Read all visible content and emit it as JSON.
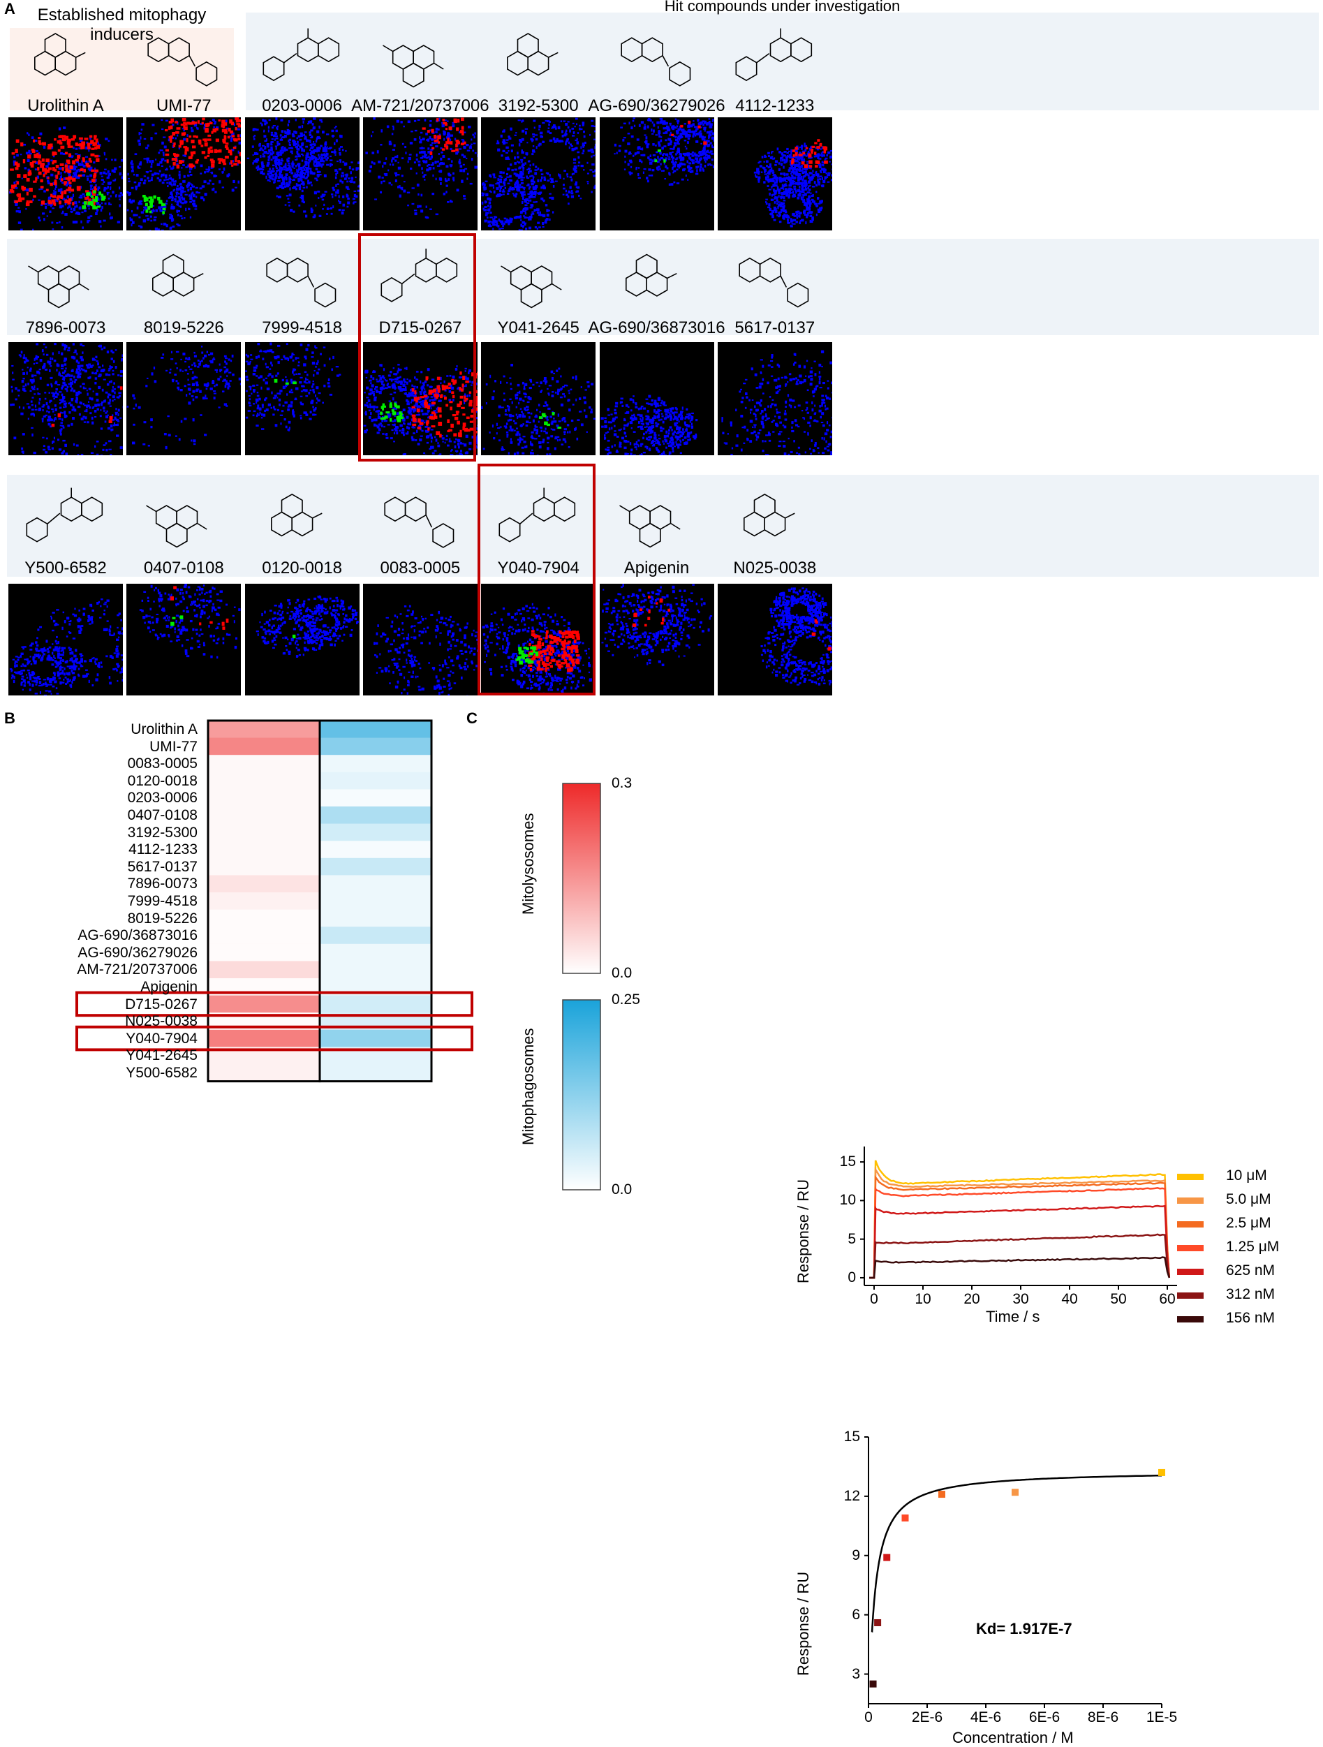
{
  "panels": {
    "a": "A",
    "b": "B",
    "c": "C"
  },
  "section_titles": {
    "established": "Established mitophagy inducers",
    "hits": "Hit compounds under investigation"
  },
  "compounds": {
    "row1": [
      "Urolithin A",
      "UMI-77",
      "0203-0006",
      "AM-721/20737006",
      "3192-5300",
      "AG-690/36279026",
      "4112-1233"
    ],
    "row2": [
      "7896-0073",
      "8019-5226",
      "7999-4518",
      "D715-0267",
      "Y041-2645",
      "AG-690/36873016",
      "5617-0137"
    ],
    "row3": [
      "Y500-6582",
      "0407-0108",
      "0120-0018",
      "0083-0005",
      "Y040-7904",
      "Apigenin",
      "N025-0038"
    ]
  },
  "colors": {
    "established_bg": "#fdf1ec",
    "hits_bg": "#eef3f8",
    "highlight": "#c00000",
    "red": "#ff0000",
    "green": "#00ee00",
    "blue": "#0000ff"
  },
  "heatmap": {
    "rows": [
      "Urolithin A",
      "UMI-77",
      "0083-0005",
      "0120-0018",
      "0203-0006",
      "0407-0108",
      "3192-5300",
      "4112-1233",
      "5617-0137",
      "7896-0073",
      "7999-4518",
      "8019-5226",
      "AG-690/36873016",
      "AG-690/36279026",
      "AM-721/20737006",
      "Apigenin",
      "D715-0267",
      "N025-0038",
      "Y040-7904",
      "Y041-2645",
      "Y500-6582"
    ],
    "mitolysosomes": [
      0.14,
      0.17,
      0.01,
      0.01,
      0.01,
      0.01,
      0.01,
      0.01,
      0.01,
      0.04,
      0.02,
      0.005,
      0.005,
      0.005,
      0.05,
      0.005,
      0.16,
      0.005,
      0.18,
      0.02,
      0.02
    ],
    "mitophagosomes": [
      0.17,
      0.13,
      0.02,
      0.03,
      0.01,
      0.09,
      0.05,
      0.01,
      0.06,
      0.02,
      0.02,
      0.02,
      0.06,
      0.02,
      0.02,
      0.02,
      0.05,
      0.04,
      0.12,
      0.03,
      0.03
    ],
    "colorbar_red": {
      "title": "Mitolysosomes",
      "max": "0.3",
      "min": "0.0"
    },
    "colorbar_blue": {
      "title": "Mitophagosomes",
      "max": "0.25",
      "min": "0.0"
    }
  },
  "chart_data": [
    {
      "type": "line",
      "xlabel": "Time / s",
      "ylabel": "Response / RU",
      "xlim": [
        -2,
        62
      ],
      "ylim": [
        -1,
        17
      ],
      "xticks": [
        "0",
        "10",
        "20",
        "30",
        "40",
        "50",
        "60"
      ],
      "yticks": [
        "0",
        "5",
        "10",
        "15"
      ],
      "series": [
        {
          "name": "10 μM",
          "color": "#ffc000",
          "peak": 15.2,
          "plateau_start": 12.2,
          "plateau_end": 13.4
        },
        {
          "name": "5.0 μM",
          "color": "#f79646",
          "peak": 14.0,
          "plateau_start": 11.8,
          "plateau_end": 12.6
        },
        {
          "name": "2.5 μM",
          "color": "#f46b20",
          "peak": 13.0,
          "plateau_start": 11.4,
          "plateau_end": 12.3
        },
        {
          "name": "1.25 μM",
          "color": "#ff4a28",
          "peak": 11.5,
          "plateau_start": 10.6,
          "plateau_end": 11.6
        },
        {
          "name": "625 nM",
          "color": "#d01818",
          "peak": 9.0,
          "plateau_start": 8.3,
          "plateau_end": 9.3
        },
        {
          "name": "312 nM",
          "color": "#8b1414",
          "peak": 4.6,
          "plateau_start": 4.5,
          "plateau_end": 5.6
        },
        {
          "name": "156 nM",
          "color": "#3a0a0a",
          "peak": 2.2,
          "plateau_start": 2.0,
          "plateau_end": 2.6
        }
      ]
    },
    {
      "type": "scatter",
      "xlabel": "Concentration / M",
      "ylabel": "Response / RU",
      "xlim": [
        0,
        1e-05
      ],
      "ylim": [
        1.5,
        15
      ],
      "xticks": [
        "0",
        "2E-6",
        "4E-6",
        "6E-6",
        "8E-6",
        "1E-5"
      ],
      "yticks": [
        "3",
        "6",
        "9",
        "12",
        "15"
      ],
      "x": [
        1.56e-07,
        3.12e-07,
        6.25e-07,
        1.25e-06,
        2.5e-06,
        5e-06,
        1e-05
      ],
      "y": [
        2.5,
        5.6,
        8.9,
        10.9,
        12.1,
        12.2,
        13.2
      ],
      "colors": [
        "#3a0a0a",
        "#8b1414",
        "#d01818",
        "#ff4a28",
        "#f46b20",
        "#f79646",
        "#ffc000"
      ],
      "fit": {
        "kd": 1.917e-07,
        "rmax": 13.3
      },
      "annotation": "Kd= 1.917E-7"
    }
  ]
}
